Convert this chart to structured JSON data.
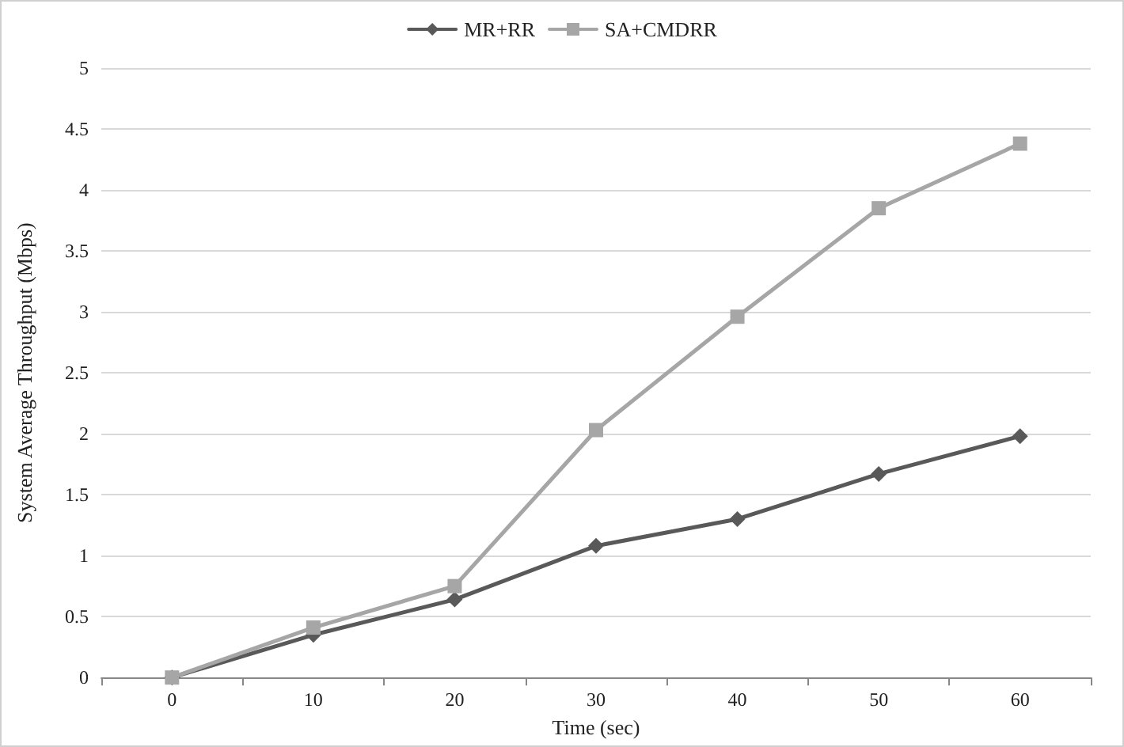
{
  "chart_data": {
    "type": "line",
    "xlabel": "Time (sec)",
    "ylabel": "System Average Throughput (Mbps)",
    "categories": [
      "0",
      "10",
      "20",
      "30",
      "40",
      "50",
      "60"
    ],
    "series": [
      {
        "name": "MR+RR",
        "color": "#595959",
        "marker": "diamond",
        "values": [
          0,
          0.35,
          0.64,
          1.08,
          1.3,
          1.67,
          1.98
        ]
      },
      {
        "name": "SA+CMDRR",
        "color": "#a6a6a6",
        "marker": "square",
        "values": [
          0,
          0.41,
          0.75,
          2.03,
          2.96,
          3.85,
          4.38
        ]
      }
    ],
    "ylim": [
      0,
      5
    ],
    "yticks": [
      0,
      0.5,
      1,
      1.5,
      2,
      2.5,
      3,
      3.5,
      4,
      4.5,
      5
    ],
    "grid": "y",
    "legend": "top",
    "line_style": "solid"
  }
}
